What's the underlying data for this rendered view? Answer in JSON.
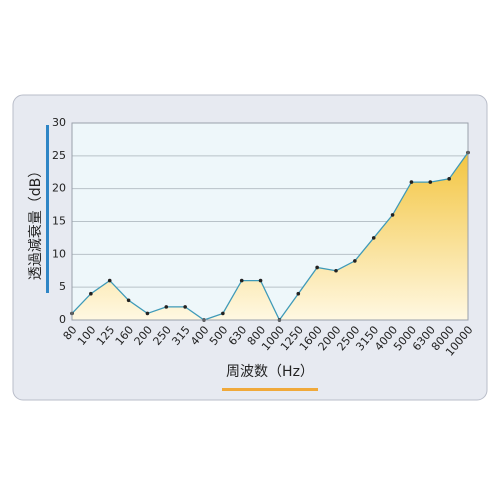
{
  "chart_data": {
    "type": "area-line",
    "ylabel": "透過減衰量（dB）",
    "xlabel": "周波数（Hz）",
    "categories": [
      "80",
      "100",
      "125",
      "160",
      "200",
      "250",
      "315",
      "400",
      "500",
      "630",
      "800",
      "1000",
      "1250",
      "1600",
      "2000",
      "2500",
      "3150",
      "4000",
      "5000",
      "6300",
      "8000",
      "10000"
    ],
    "values": [
      1,
      4,
      6,
      3,
      1,
      2,
      2,
      0,
      1,
      6,
      6,
      0,
      4,
      8,
      7.5,
      9,
      12.5,
      16,
      21,
      21,
      21.5,
      25.5
    ],
    "color": "#3f9ab8",
    "ylim": [
      0,
      30
    ],
    "yticks": [
      0,
      5,
      10,
      15,
      20,
      25,
      30
    ],
    "grid": true
  }
}
